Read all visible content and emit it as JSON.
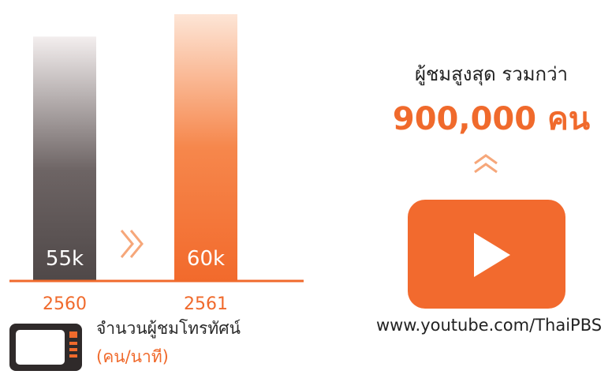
{
  "chart_data": {
    "type": "bar",
    "categories": [
      "2560",
      "2561"
    ],
    "values": [
      55,
      60
    ],
    "value_labels": [
      "55k",
      "60k"
    ],
    "bar_colors": [
      "#5a5353",
      "#f4753a"
    ],
    "category_color": "#f06a2c",
    "ylim": [
      0,
      60
    ],
    "grid": false
  },
  "legend": {
    "icon": "tv-icon",
    "label": "จำนวนผู้ชมโทรทัศน์",
    "unit": "(คน/นาที)"
  },
  "online": {
    "caption": "ผู้ชมสูงสุด รวมกว่า",
    "value": "900,000 คน",
    "increase_icon": "double-chevron-up-icon",
    "platform_icon": "youtube-play-icon",
    "url": "www.youtube.com/ThaiPBS"
  },
  "colors": {
    "accent": "#f06a2c",
    "dark": "#5a5353"
  }
}
